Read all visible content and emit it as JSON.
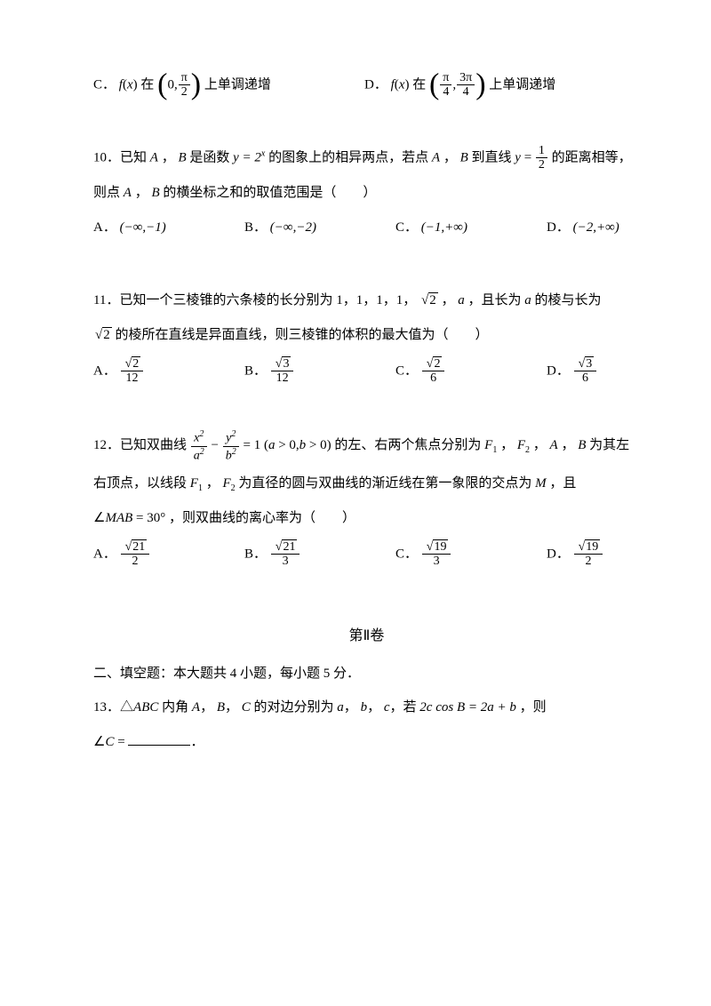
{
  "colors": {
    "text": "#000000",
    "background": "#ffffff"
  },
  "typography": {
    "body_fontsize": 15,
    "title_fontsize": 16,
    "font_family": "SimSun, Times New Roman, serif"
  },
  "q9": {
    "C_prefix": "C．",
    "C_fx": "f",
    "C_var": "x",
    "C_at": "在",
    "C_lo": "0,",
    "C_hi_num": "π",
    "C_hi_den": "2",
    "C_tail": "上单调递增",
    "D_prefix": "D．",
    "D_fx": "f",
    "D_var": "x",
    "D_at": "在",
    "D_lo_num": "π",
    "D_lo_den": "4",
    "D_hi_num": "3π",
    "D_hi_den": "4",
    "D_tail": "上单调递增"
  },
  "q10": {
    "line1a": "10．已知",
    "A": "A",
    "comma": " ，",
    "B": "B",
    "line1b": " 是函数 ",
    "fn": "y = 2",
    "exp": "x",
    "line1c": " 的图象上的相异两点，若点",
    "line1d": " 到直线 ",
    "y_eq": "y",
    "eq": " = ",
    "half_num": "1",
    "half_den": "2",
    "line1e": " 的距离相等，",
    "line2": "则点",
    "line2b": " 的横坐标之和的取值范围是（　　）",
    "optA_label": "A．",
    "optA": "(−∞,−1)",
    "optB_label": "B．",
    "optB": "(−∞,−2)",
    "optC_label": "C．",
    "optC": "(−1,+∞)",
    "optD_label": "D．",
    "optD": "(−2,+∞)"
  },
  "q11": {
    "line1": "11．已知一个三棱锥的六条棱的长分别为 1，1，1，1，",
    "sqrt2": "2",
    "line1b": " ，",
    "a": "a",
    "line1c": " ，且长为",
    "line1d": " 的棱与长为",
    "line2a": " 的棱所在直线是异面直线，则三棱锥的体积的最大值为（　　）",
    "optA_label": "A．",
    "A_num_rad": "2",
    "A_den": "12",
    "optB_label": "B．",
    "B_num_rad": "3",
    "B_den": "12",
    "optC_label": "C．",
    "C_num_rad": "2",
    "C_den": "6",
    "optD_label": "D．",
    "D_num_rad": "3",
    "D_den": "6"
  },
  "q12": {
    "line1a": "12．已知双曲线 ",
    "x2": "x",
    "a2": "a",
    "y2": "y",
    "b2": "b",
    "eq_one": " = 1 (",
    "a": "a",
    "gt0": " > 0,",
    "b": "b",
    "gt0b": " > 0)",
    "line1b": " 的左、右两个焦点分别为",
    "F1": "F",
    "F1sub": "1",
    "F2": "F",
    "F2sub": "2",
    "AB": "A",
    "B": "B",
    "line1c": " 为其左",
    "line2a": "右顶点，以线段",
    "line2b": " 为直径的圆与双曲线的渐近线在第一象限的交点为",
    "M": "M",
    "line2c": " ，且",
    "line3a": "∠",
    "MAB": "MAB",
    "eq30": " = 30° ，则双曲线的离心率为（　　）",
    "optA_label": "A．",
    "A_num_rad": "21",
    "A_den": "2",
    "optB_label": "B．",
    "B_num_rad": "21",
    "B_den": "3",
    "optC_label": "C．",
    "C_num_rad": "19",
    "C_den": "3",
    "optD_label": "D．",
    "D_num_rad": "19",
    "D_den": "2"
  },
  "section": {
    "title": "第Ⅱ卷",
    "instr": "二、填空题：本大题共  4 小题，每小题  5 分．"
  },
  "q13": {
    "line1a": "13．",
    "tri": "△",
    "ABC": "ABC",
    "line1b": " 内角 ",
    "Aa": "A",
    "Bb": "B",
    "Cc": "C",
    "line1c": " 的对边分别为 ",
    "aa": "a",
    "bb": "b",
    "cc": "c",
    "line1d": "，若 ",
    "eq": "2c cos B = 2a + b",
    "line1e": " ，则",
    "line2a": "∠",
    "C": "C",
    "line2b": " = ",
    "period": "．"
  }
}
